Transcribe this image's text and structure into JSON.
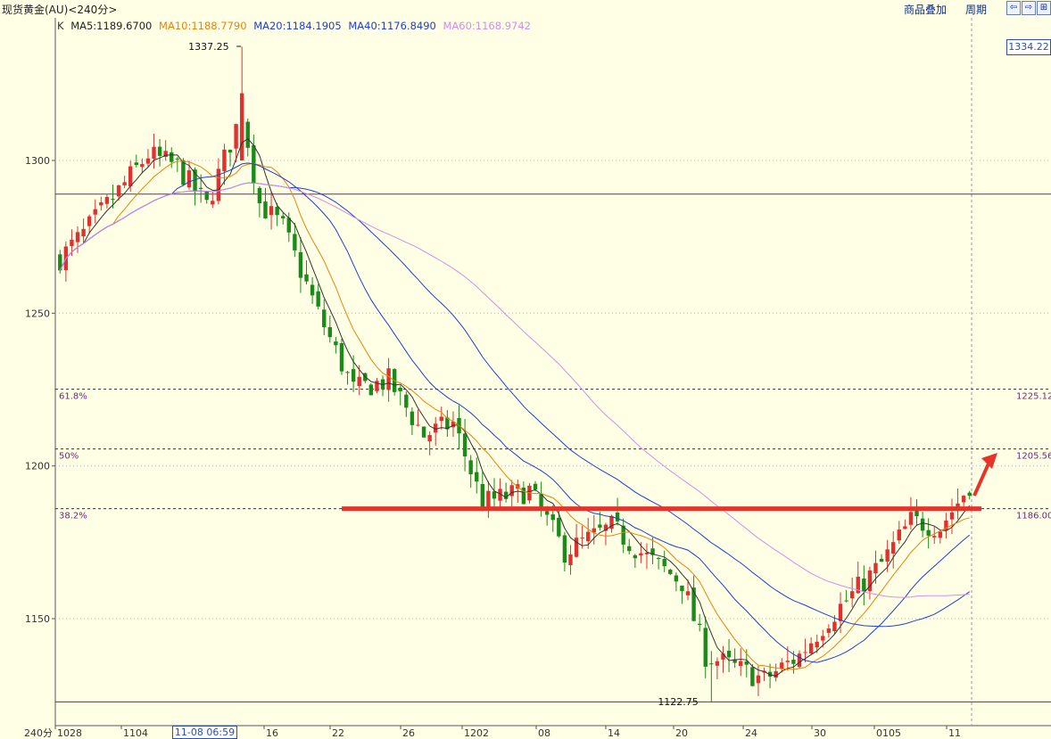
{
  "title_bar": {
    "title": "现货黄金(AU)<240分>",
    "overlay_label": "商品叠加",
    "period_label": "周期",
    "nav_left": "⇦",
    "nav_right": "⇨",
    "nav_expand": "⊞"
  },
  "legend": {
    "k": "K",
    "ma5": "MA5:1189.6700",
    "ma10": "MA10:1188.7790",
    "ma20": "MA20:1184.1905",
    "ma40": "MA40:1176.8490",
    "ma60": "MA60:1168.9742"
  },
  "colors": {
    "background": "#ffffe6",
    "up": "#e03030",
    "down": "#1a8a1a",
    "ma5": "#333333",
    "ma10": "#e8820c",
    "ma20": "#1e3fd0",
    "ma40": "#1e3fd0",
    "ma60": "#d58ce6",
    "fib_line": "#333333",
    "hline": "#6a2a7a",
    "resistance": "#e8332a",
    "arrow": "#e8332a"
  },
  "status": {
    "last_price": "1334.22",
    "cursor_time": "11-08 06:59",
    "period_label": "240分"
  },
  "chart_data": {
    "type": "candlestick",
    "title": "现货黄金(AU)<240分>",
    "ylim": [
      1118,
      1345
    ],
    "y_ticks": [
      1150,
      1200,
      1250,
      1300
    ],
    "x_ticks": [
      "1028",
      "1104",
      "16",
      "22",
      "26",
      "1202",
      "08",
      "14",
      "20",
      "24",
      "30",
      "0105",
      "11"
    ],
    "annotations": {
      "high_label": "1337.25",
      "low_label": "1122.75",
      "fib_left": [
        "61.8%",
        "50%",
        "38.2%"
      ],
      "fib_right": [
        "1225.12",
        "1205.56",
        "1186.00"
      ]
    },
    "fib_levels": [
      1225.12,
      1205.56,
      1186.0
    ],
    "horizontal_lines": [
      1289,
      1122.75
    ],
    "resistance_level": 1186,
    "moving_averages": [
      "MA5",
      "MA10",
      "MA20",
      "MA40",
      "MA60"
    ],
    "close_path": [
      {
        "x": 0,
        "y": 1268
      },
      {
        "x": 4,
        "y": 1276
      },
      {
        "x": 10,
        "y": 1290
      },
      {
        "x": 15,
        "y": 1302
      },
      {
        "x": 20,
        "y": 1298
      },
      {
        "x": 25,
        "y": 1285
      },
      {
        "x": 31,
        "y": 1316
      },
      {
        "x": 34,
        "y": 1286
      },
      {
        "x": 38,
        "y": 1278
      },
      {
        "x": 44,
        "y": 1250
      },
      {
        "x": 50,
        "y": 1225
      },
      {
        "x": 56,
        "y": 1228
      },
      {
        "x": 62,
        "y": 1210
      },
      {
        "x": 67,
        "y": 1214
      },
      {
        "x": 72,
        "y": 1188
      },
      {
        "x": 80,
        "y": 1192
      },
      {
        "x": 86,
        "y": 1172
      },
      {
        "x": 94,
        "y": 1180
      },
      {
        "x": 100,
        "y": 1170
      },
      {
        "x": 106,
        "y": 1162
      },
      {
        "x": 110,
        "y": 1138
      },
      {
        "x": 115,
        "y": 1134
      },
      {
        "x": 120,
        "y": 1130
      },
      {
        "x": 126,
        "y": 1138
      },
      {
        "x": 131,
        "y": 1150
      },
      {
        "x": 135,
        "y": 1158
      },
      {
        "x": 140,
        "y": 1168
      },
      {
        "x": 145,
        "y": 1182
      },
      {
        "x": 150,
        "y": 1180
      },
      {
        "x": 153,
        "y": 1188
      },
      {
        "x": 155,
        "y": 1194
      }
    ]
  }
}
